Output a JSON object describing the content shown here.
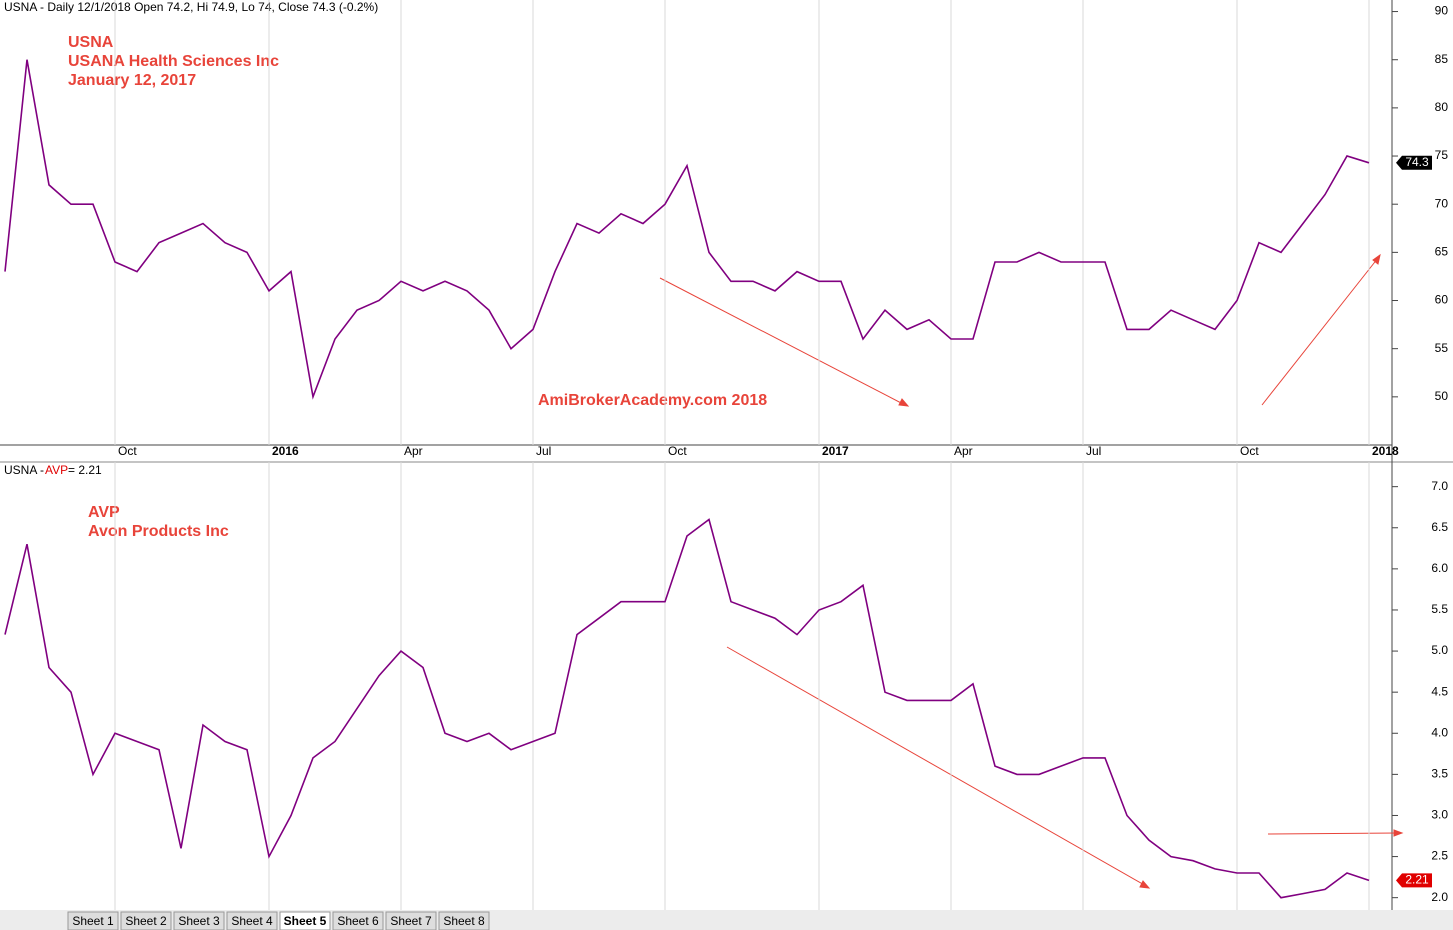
{
  "chart_data": [
    {
      "type": "line",
      "title": "USNA - Daily 12/1/2018 Open 74.2, Hi 74.9, Lo 74, Close 74.3 (-0.2%)",
      "annotations": [
        "USNA",
        "USANA Health Sciences Inc",
        "January 12, 2017"
      ],
      "watermark": "AmiBrokerAcademy.com  2018",
      "categories": [
        null,
        null,
        null,
        null,
        null,
        "Oct",
        null,
        null,
        null,
        null,
        null,
        null,
        "2016",
        null,
        null,
        null,
        null,
        null,
        "Apr",
        null,
        null,
        null,
        null,
        null,
        "Jul",
        null,
        null,
        null,
        null,
        null,
        "Oct",
        null,
        null,
        null,
        null,
        null,
        null,
        "2017",
        null,
        null,
        null,
        null,
        null,
        "Apr",
        null,
        null,
        null,
        null,
        null,
        "Jul",
        null,
        null,
        null,
        null,
        null,
        null,
        "Oct",
        null,
        null,
        null,
        null,
        null,
        "2018"
      ],
      "series": [
        {
          "name": "USNA",
          "color": "#800080",
          "values": [
            63,
            85,
            72,
            70,
            70,
            64,
            63,
            66,
            67,
            68,
            66,
            65,
            61,
            63,
            50,
            56,
            59,
            60,
            62,
            61,
            62,
            61,
            59,
            55,
            57,
            63,
            68,
            67,
            69,
            68,
            70,
            74,
            65,
            62,
            62,
            61,
            63,
            62,
            62,
            56,
            59,
            57,
            58,
            56,
            56,
            64,
            64,
            65,
            64,
            64,
            64,
            57,
            57,
            59,
            58,
            57,
            60,
            66,
            65,
            68,
            71,
            75,
            74.3
          ]
        }
      ],
      "ylim": [
        45,
        91.2
      ],
      "yticks": [
        50,
        55,
        60,
        65,
        70,
        75,
        80,
        85,
        90
      ],
      "xgrid": true,
      "tag_color": "#000000"
    },
    {
      "type": "line",
      "title": [
        "USNA - ",
        "AVP",
        " = 2.21"
      ],
      "annotations": [
        "AVP",
        "Avon Products Inc"
      ],
      "series": [
        {
          "name": "AVP",
          "color": "#800080",
          "values": [
            5.2,
            6.3,
            4.8,
            4.5,
            3.5,
            4.0,
            3.9,
            3.8,
            2.6,
            4.1,
            3.9,
            3.8,
            2.5,
            3.0,
            3.7,
            3.9,
            4.3,
            4.7,
            5.0,
            4.8,
            4.0,
            3.9,
            4.0,
            3.8,
            3.9,
            4.0,
            5.2,
            5.4,
            5.6,
            5.6,
            5.6,
            6.4,
            6.6,
            5.6,
            5.5,
            5.4,
            5.2,
            5.5,
            5.6,
            5.8,
            4.5,
            4.4,
            4.4,
            4.4,
            4.6,
            3.6,
            3.5,
            3.5,
            3.6,
            3.7,
            3.7,
            3.0,
            2.7,
            2.5,
            2.45,
            2.35,
            2.3,
            2.3,
            2.0,
            2.05,
            2.1,
            2.3,
            2.21
          ]
        }
      ],
      "ylim": [
        1.85,
        7.3
      ],
      "yticks": [
        {
          "value": 2,
          "label": "2.0"
        },
        2.5,
        {
          "value": 3,
          "label": "3.0"
        },
        3.5,
        {
          "value": 4,
          "label": "4.0"
        },
        4.5,
        {
          "value": 5,
          "label": "5.0"
        },
        5.5,
        {
          "value": 6,
          "label": "6.0"
        },
        6.5,
        {
          "value": 7,
          "label": "7.0"
        }
      ],
      "xgrid": true,
      "tag_color": "#e00000"
    }
  ],
  "tabs": [
    "Sheet 1",
    "Sheet 2",
    "Sheet 3",
    "Sheet 4",
    "Sheet 5",
    "Sheet 6",
    "Sheet 7",
    "Sheet 8"
  ]
}
